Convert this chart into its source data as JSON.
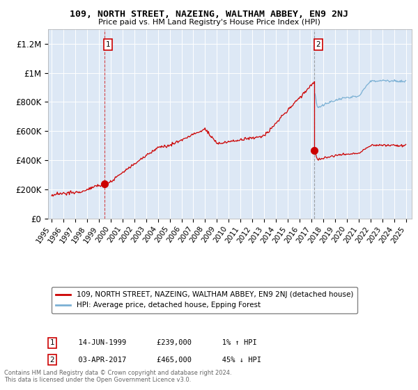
{
  "title": "109, NORTH STREET, NAZEING, WALTHAM ABBEY, EN9 2NJ",
  "subtitle": "Price paid vs. HM Land Registry's House Price Index (HPI)",
  "ylabel_ticks": [
    "£0",
    "£200K",
    "£400K",
    "£600K",
    "£800K",
    "£1M",
    "£1.2M"
  ],
  "ytick_values": [
    0,
    200000,
    400000,
    600000,
    800000,
    1000000,
    1200000
  ],
  "ylim": [
    0,
    1300000
  ],
  "xlim_start": 1994.7,
  "xlim_end": 2025.5,
  "xticks": [
    1995,
    1996,
    1997,
    1998,
    1999,
    2000,
    2001,
    2002,
    2003,
    2004,
    2005,
    2006,
    2007,
    2008,
    2009,
    2010,
    2011,
    2012,
    2013,
    2014,
    2015,
    2016,
    2017,
    2018,
    2019,
    2020,
    2021,
    2022,
    2023,
    2024,
    2025
  ],
  "sale1_x": 1999.45,
  "sale1_y": 239000,
  "sale1_label": "1",
  "sale1_date": "14-JUN-1999",
  "sale1_price": "£239,000",
  "sale1_hpi": "1% ↑ HPI",
  "sale2_x": 2017.25,
  "sale2_y": 465000,
  "sale2_label": "2",
  "sale2_date": "03-APR-2017",
  "sale2_price": "£465,000",
  "sale2_hpi": "45% ↓ HPI",
  "property_color": "#cc0000",
  "hpi_color": "#7ab0d4",
  "plot_bg": "#dde8f5",
  "legend_label_property": "109, NORTH STREET, NAZEING, WALTHAM ABBEY, EN9 2NJ (detached house)",
  "legend_label_hpi": "HPI: Average price, detached house, Epping Forest",
  "footnote": "Contains HM Land Registry data © Crown copyright and database right 2024.\nThis data is licensed under the Open Government Licence v3.0."
}
